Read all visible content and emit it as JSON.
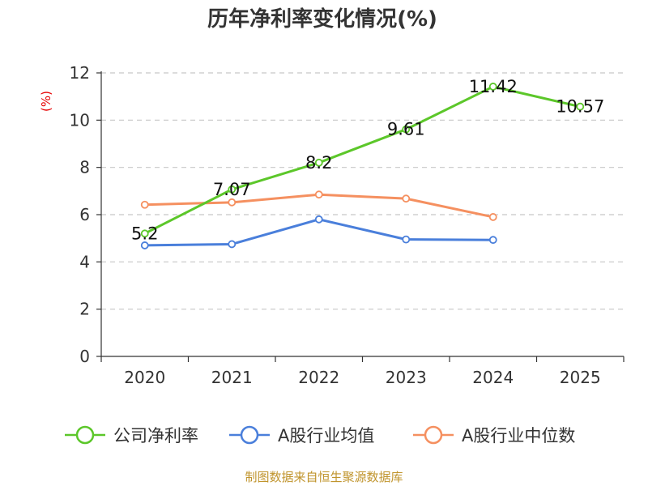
{
  "chart_data": {
    "type": "line",
    "title": "历年净利率变化情况(%)",
    "ylabel": "(%)",
    "xlabel": "",
    "ylim": [
      0,
      12
    ],
    "yticks": [
      0,
      2,
      4,
      6,
      8,
      10,
      12
    ],
    "categories": [
      "2020",
      "2021",
      "2022",
      "2023",
      "2024",
      "2025"
    ],
    "grid": true,
    "legend_position": "bottom",
    "series": [
      {
        "name": "公司净利率",
        "color": "#5cc72a",
        "values": [
          5.2,
          7.07,
          8.2,
          9.61,
          11.42,
          10.57
        ],
        "labels": [
          "5.2",
          "7.07",
          "8.2",
          "9.61",
          "11.42",
          "10.57"
        ]
      },
      {
        "name": "A股行业均值",
        "color": "#4a7fdb",
        "values": [
          4.7,
          4.75,
          5.8,
          4.95,
          4.93,
          null
        ]
      },
      {
        "name": "A股行业中位数",
        "color": "#f59060",
        "values": [
          6.42,
          6.52,
          6.85,
          6.68,
          5.9,
          null
        ]
      }
    ],
    "source": "制图数据来自恒生聚源数据库",
    "colors": {
      "axis": "#333333",
      "grid": "#c8c8c8",
      "ylabel": "#e60000",
      "source": "#c0942c"
    }
  }
}
